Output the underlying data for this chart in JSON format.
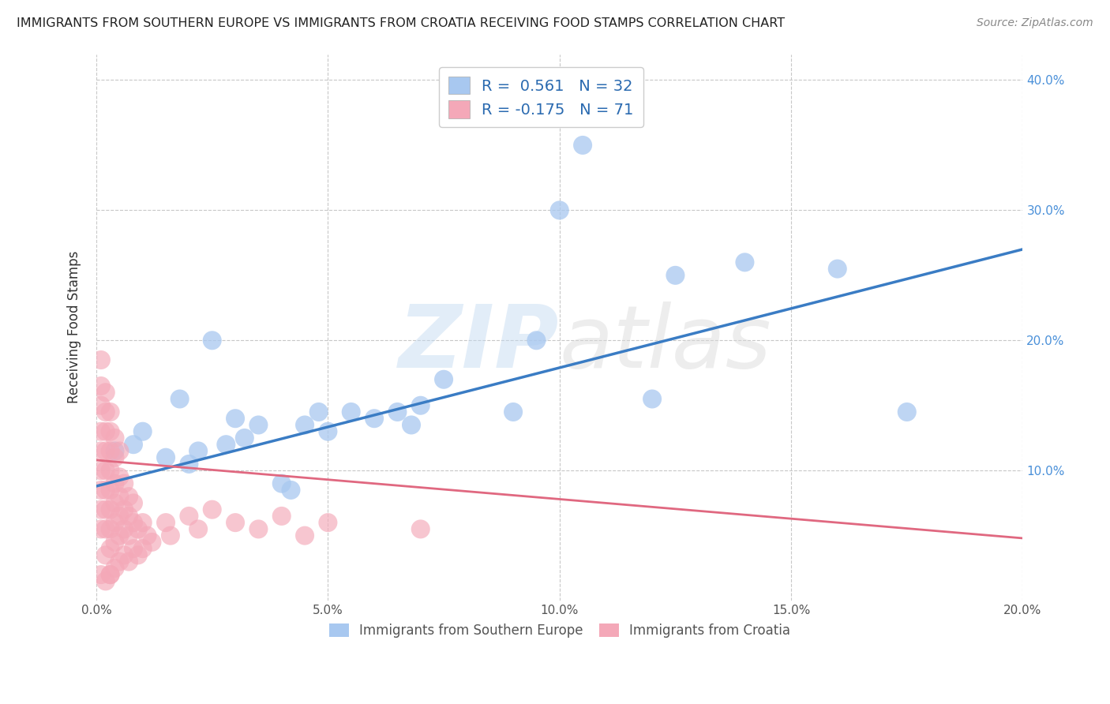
{
  "title": "IMMIGRANTS FROM SOUTHERN EUROPE VS IMMIGRANTS FROM CROATIA RECEIVING FOOD STAMPS CORRELATION CHART",
  "source": "Source: ZipAtlas.com",
  "ylabel": "Receiving Food Stamps",
  "series1_label": "Immigrants from Southern Europe",
  "series2_label": "Immigrants from Croatia",
  "series1_R": 0.561,
  "series1_N": 32,
  "series2_R": -0.175,
  "series2_N": 71,
  "xlim": [
    0.0,
    0.2
  ],
  "ylim": [
    0.0,
    0.42
  ],
  "yticks_right": [
    0.1,
    0.2,
    0.3,
    0.4
  ],
  "ytick_labels_right": [
    "10.0%",
    "20.0%",
    "30.0%",
    "40.0%"
  ],
  "xticks": [
    0.0,
    0.05,
    0.1,
    0.15,
    0.2
  ],
  "xtick_labels": [
    "0.0%",
    "5.0%",
    "10.0%",
    "15.0%",
    "20.0%"
  ],
  "bg_color": "#ffffff",
  "grid_color": "#c8c8c8",
  "series1_color": "#a8c8f0",
  "series2_color": "#f4a8b8",
  "series1_line_color": "#3a7cc4",
  "series2_line_color": "#e06880",
  "series1_scatter": [
    [
      0.004,
      0.115
    ],
    [
      0.008,
      0.12
    ],
    [
      0.01,
      0.13
    ],
    [
      0.015,
      0.11
    ],
    [
      0.018,
      0.155
    ],
    [
      0.02,
      0.105
    ],
    [
      0.022,
      0.115
    ],
    [
      0.025,
      0.2
    ],
    [
      0.028,
      0.12
    ],
    [
      0.03,
      0.14
    ],
    [
      0.032,
      0.125
    ],
    [
      0.035,
      0.135
    ],
    [
      0.04,
      0.09
    ],
    [
      0.042,
      0.085
    ],
    [
      0.045,
      0.135
    ],
    [
      0.048,
      0.145
    ],
    [
      0.05,
      0.13
    ],
    [
      0.055,
      0.145
    ],
    [
      0.06,
      0.14
    ],
    [
      0.065,
      0.145
    ],
    [
      0.068,
      0.135
    ],
    [
      0.07,
      0.15
    ],
    [
      0.075,
      0.17
    ],
    [
      0.09,
      0.145
    ],
    [
      0.095,
      0.2
    ],
    [
      0.1,
      0.3
    ],
    [
      0.105,
      0.35
    ],
    [
      0.12,
      0.155
    ],
    [
      0.125,
      0.25
    ],
    [
      0.14,
      0.26
    ],
    [
      0.16,
      0.255
    ],
    [
      0.175,
      0.145
    ]
  ],
  "series2_scatter": [
    [
      0.001,
      0.02
    ],
    [
      0.001,
      0.055
    ],
    [
      0.001,
      0.07
    ],
    [
      0.001,
      0.085
    ],
    [
      0.001,
      0.1
    ],
    [
      0.001,
      0.115
    ],
    [
      0.001,
      0.13
    ],
    [
      0.001,
      0.15
    ],
    [
      0.001,
      0.165
    ],
    [
      0.001,
      0.185
    ],
    [
      0.002,
      0.015
    ],
    [
      0.002,
      0.035
    ],
    [
      0.002,
      0.055
    ],
    [
      0.002,
      0.07
    ],
    [
      0.002,
      0.085
    ],
    [
      0.002,
      0.1
    ],
    [
      0.002,
      0.115
    ],
    [
      0.002,
      0.13
    ],
    [
      0.002,
      0.145
    ],
    [
      0.002,
      0.16
    ],
    [
      0.003,
      0.02
    ],
    [
      0.003,
      0.04
    ],
    [
      0.003,
      0.055
    ],
    [
      0.003,
      0.07
    ],
    [
      0.003,
      0.085
    ],
    [
      0.003,
      0.1
    ],
    [
      0.003,
      0.115
    ],
    [
      0.003,
      0.13
    ],
    [
      0.003,
      0.145
    ],
    [
      0.003,
      0.02
    ],
    [
      0.004,
      0.025
    ],
    [
      0.004,
      0.045
    ],
    [
      0.004,
      0.06
    ],
    [
      0.004,
      0.075
    ],
    [
      0.004,
      0.09
    ],
    [
      0.004,
      0.11
    ],
    [
      0.004,
      0.125
    ],
    [
      0.005,
      0.03
    ],
    [
      0.005,
      0.05
    ],
    [
      0.005,
      0.065
    ],
    [
      0.005,
      0.08
    ],
    [
      0.005,
      0.095
    ],
    [
      0.005,
      0.115
    ],
    [
      0.006,
      0.035
    ],
    [
      0.006,
      0.055
    ],
    [
      0.006,
      0.07
    ],
    [
      0.006,
      0.09
    ],
    [
      0.007,
      0.03
    ],
    [
      0.007,
      0.05
    ],
    [
      0.007,
      0.065
    ],
    [
      0.007,
      0.08
    ],
    [
      0.008,
      0.04
    ],
    [
      0.008,
      0.06
    ],
    [
      0.008,
      0.075
    ],
    [
      0.009,
      0.035
    ],
    [
      0.009,
      0.055
    ],
    [
      0.01,
      0.04
    ],
    [
      0.01,
      0.06
    ],
    [
      0.011,
      0.05
    ],
    [
      0.012,
      0.045
    ],
    [
      0.015,
      0.06
    ],
    [
      0.016,
      0.05
    ],
    [
      0.02,
      0.065
    ],
    [
      0.022,
      0.055
    ],
    [
      0.025,
      0.07
    ],
    [
      0.03,
      0.06
    ],
    [
      0.035,
      0.055
    ],
    [
      0.04,
      0.065
    ],
    [
      0.045,
      0.05
    ],
    [
      0.05,
      0.06
    ],
    [
      0.07,
      0.055
    ]
  ]
}
